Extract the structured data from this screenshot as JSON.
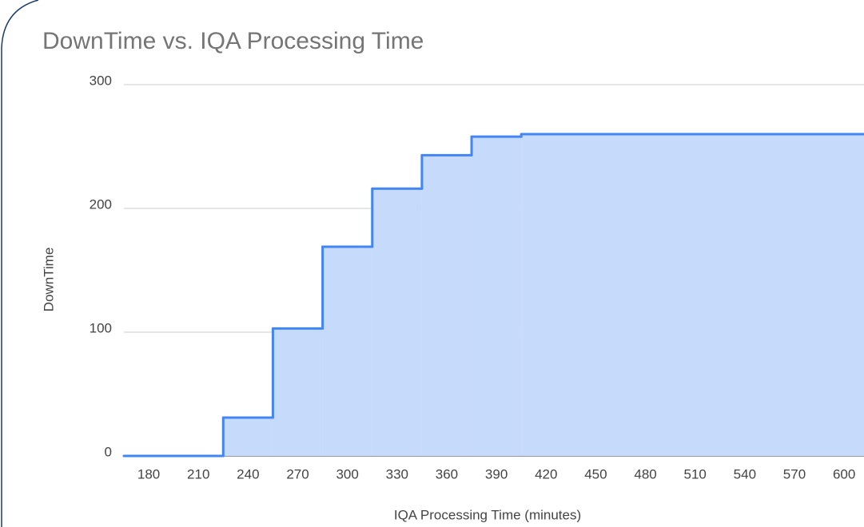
{
  "chart_data": {
    "type": "stepped-area",
    "title": "DownTime vs. IQA Processing Time",
    "x_label": "IQA Processing Time (minutes)",
    "y_label": "DownTime",
    "x": [
      165,
      225,
      255,
      285,
      315,
      345,
      375,
      405
    ],
    "series": [
      {
        "name": "DownTime",
        "color": "#4285f4",
        "values": [
          0,
          31,
          103,
          169,
          216,
          243,
          258,
          260
        ]
      }
    ],
    "area_color": "#c6dafc",
    "xlim": [
      165,
      612
    ],
    "xticks": [
      180,
      210,
      240,
      270,
      300,
      330,
      360,
      390,
      420,
      450,
      480,
      510,
      540,
      570,
      600
    ],
    "ylim": [
      0,
      300
    ],
    "yticks": [
      0,
      100,
      200,
      300
    ],
    "grid": true
  }
}
